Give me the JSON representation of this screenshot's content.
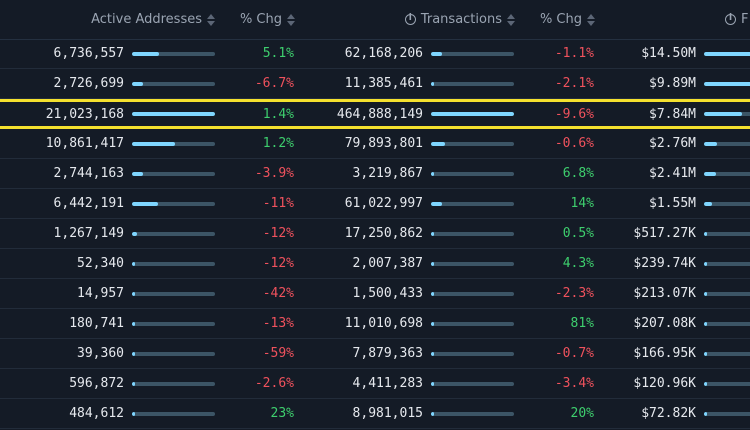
{
  "columns": [
    {
      "label": "Active Addresses",
      "info": false
    },
    {
      "label": "% Chg",
      "info": false
    },
    {
      "label": "Transactions",
      "info": true
    },
    {
      "label": "% Chg",
      "info": false
    },
    {
      "label": "F",
      "info": true
    }
  ],
  "highlight_row": 2,
  "colors": {
    "positive": "#3ecf6e",
    "negative": "#f0525d",
    "bar_fill": "#7fd6ff",
    "bar_track": "#3c5566",
    "highlight": "#f5e12e"
  },
  "rows": [
    {
      "active": "6,736,557",
      "active_bar": 0.32,
      "active_chg": "5.1%",
      "active_dir": "pos",
      "tx": "62,168,206",
      "tx_bar": 0.13,
      "tx_chg": "-1.1%",
      "tx_dir": "neg",
      "fee": "$14.50M",
      "fee_bar": 1.0
    },
    {
      "active": "2,726,699",
      "active_bar": 0.13,
      "active_chg": "-6.7%",
      "active_dir": "neg",
      "tx": "11,385,461",
      "tx_bar": 0.03,
      "tx_chg": "-2.1%",
      "tx_dir": "neg",
      "fee": "$9.89M",
      "fee_bar": 0.68
    },
    {
      "active": "21,023,168",
      "active_bar": 1.0,
      "active_chg": "1.4%",
      "active_dir": "pos",
      "tx": "464,888,149",
      "tx_bar": 1.0,
      "tx_chg": "-9.6%",
      "tx_dir": "neg",
      "fee": "$7.84M",
      "fee_bar": 0.54
    },
    {
      "active": "10,861,417",
      "active_bar": 0.52,
      "active_chg": "1.2%",
      "active_dir": "pos",
      "tx": "79,893,801",
      "tx_bar": 0.17,
      "tx_chg": "-0.6%",
      "tx_dir": "neg",
      "fee": "$2.76M",
      "fee_bar": 0.19
    },
    {
      "active": "2,744,163",
      "active_bar": 0.13,
      "active_chg": "-3.9%",
      "active_dir": "neg",
      "tx": "3,219,867",
      "tx_bar": 0.01,
      "tx_chg": "6.8%",
      "tx_dir": "pos",
      "fee": "$2.41M",
      "fee_bar": 0.17
    },
    {
      "active": "6,442,191",
      "active_bar": 0.31,
      "active_chg": "-11%",
      "active_dir": "neg",
      "tx": "61,022,997",
      "tx_bar": 0.13,
      "tx_chg": "14%",
      "tx_dir": "pos",
      "fee": "$1.55M",
      "fee_bar": 0.11
    },
    {
      "active": "1,267,149",
      "active_bar": 0.06,
      "active_chg": "-12%",
      "active_dir": "neg",
      "tx": "17,250,862",
      "tx_bar": 0.04,
      "tx_chg": "0.5%",
      "tx_dir": "pos",
      "fee": "$517.27K",
      "fee_bar": 0.04
    },
    {
      "active": "52,340",
      "active_bar": 0.005,
      "active_chg": "-12%",
      "active_dir": "neg",
      "tx": "2,007,387",
      "tx_bar": 0.005,
      "tx_chg": "4.3%",
      "tx_dir": "pos",
      "fee": "$239.74K",
      "fee_bar": 0.02
    },
    {
      "active": "14,957",
      "active_bar": 0.002,
      "active_chg": "-42%",
      "active_dir": "neg",
      "tx": "1,500,433",
      "tx_bar": 0.003,
      "tx_chg": "-2.3%",
      "tx_dir": "neg",
      "fee": "$213.07K",
      "fee_bar": 0.015
    },
    {
      "active": "180,741",
      "active_bar": 0.01,
      "active_chg": "-13%",
      "active_dir": "neg",
      "tx": "11,010,698",
      "tx_bar": 0.03,
      "tx_chg": "81%",
      "tx_dir": "pos",
      "fee": "$207.08K",
      "fee_bar": 0.014
    },
    {
      "active": "39,360",
      "active_bar": 0.002,
      "active_chg": "-59%",
      "active_dir": "neg",
      "tx": "7,879,363",
      "tx_bar": 0.02,
      "tx_chg": "-0.7%",
      "tx_dir": "neg",
      "fee": "$166.95K",
      "fee_bar": 0.012
    },
    {
      "active": "596,872",
      "active_bar": 0.03,
      "active_chg": "-2.6%",
      "active_dir": "neg",
      "tx": "4,411,283",
      "tx_bar": 0.01,
      "tx_chg": "-3.4%",
      "tx_dir": "neg",
      "fee": "$120.96K",
      "fee_bar": 0.008
    },
    {
      "active": "484,612",
      "active_bar": 0.02,
      "active_chg": "23%",
      "active_dir": "pos",
      "tx": "8,981,015",
      "tx_bar": 0.02,
      "tx_chg": "20%",
      "tx_dir": "pos",
      "fee": "$72.82K",
      "fee_bar": 0.005
    }
  ]
}
